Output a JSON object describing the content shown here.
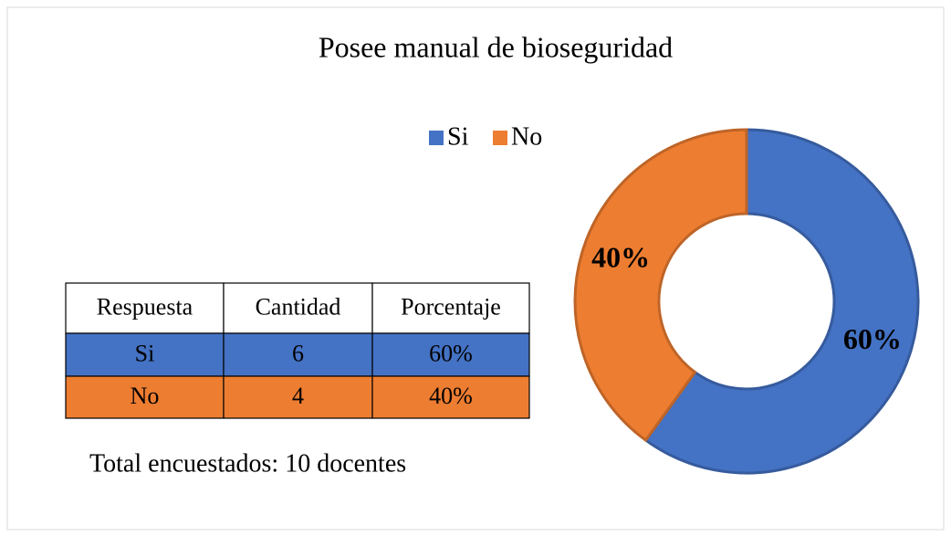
{
  "chart_data": {
    "type": "donut",
    "title": "Posee manual de bioseguridad",
    "categories": [
      "Si",
      "No"
    ],
    "values": [
      60,
      40
    ],
    "value_labels": [
      "60%",
      "40%"
    ],
    "colors": [
      "#4472c4",
      "#ed7d31"
    ],
    "legend": "top"
  },
  "table": {
    "header": [
      "Respuesta",
      "Cantidad",
      "Porcentaje"
    ],
    "rows": [
      [
        "Si",
        "6",
        "60%"
      ],
      [
        "No",
        "4",
        "40%"
      ]
    ]
  },
  "footnote": "Total encuestados: 10 docentes"
}
